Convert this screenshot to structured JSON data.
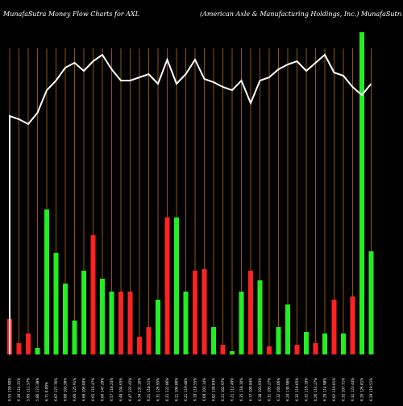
{
  "header": {
    "title_left": "MunafaSutra  Money Flow  Charts for AXL",
    "title_right": "(American  Axle   & Manufacturing Holdings,  Inc.) MunafaSutra.com"
  },
  "chart_data": {
    "type": "bar",
    "title": "MunafaSutra  Money Flow  Charts for AXL",
    "subtitle": "(American  Axle   & Manufacturing Holdings,  Inc.) MunafaSutra.com",
    "colors": {
      "background": "#000000",
      "grid": "#b86a10",
      "up": "#22ee22",
      "down": "#ff2222",
      "line": "#ffffff"
    },
    "categories": [
      "6.55 159.90%",
      "6.20 114.31%",
      "5.95 111.57%",
      "5.86 173.38%",
      "6.71 0.00%",
      "6.67 177.76%",
      "6.60 103.58%",
      "6.60 125.91%",
      "6.68 106.00%",
      "6.65 116.47%",
      "6.60 147.29%",
      "6.57 118.24%",
      "6.48 104.65%",
      "6.47 122.42%",
      "6.34 131.16%",
      "6.21 118.51%",
      "6.31 126.95%",
      "6.21 122.86%",
      "6.21 106.80%",
      "6.21 119.48%",
      "6.19 118.55%",
      "6.09 103.14%",
      "6.02 128.83%",
      "6.21 102.97%",
      "6.21 112.49%",
      "6.35 118.10%",
      "6.37 100.84%",
      "6.38 103.93%",
      "6.31 105.27%",
      "6.32 160.06%",
      "6.24 130.98%",
      "6.32 119.05%",
      "6.31 119.19%",
      "6.26 114.27%",
      "6.29 114.98%",
      "6.02 110.01%",
      "6.32 107.71%",
      "6.31 123.44%",
      "6.26 126.81%",
      "6.29 119.51%"
    ],
    "directions": [
      "red",
      "red",
      "red",
      "green",
      "green",
      "green",
      "green",
      "green",
      "green",
      "red",
      "green",
      "green",
      "red",
      "red",
      "red",
      "red",
      "green",
      "red",
      "green",
      "green",
      "red",
      "red",
      "green",
      "red",
      "green",
      "green",
      "red",
      "green",
      "red",
      "green",
      "green",
      "red",
      "green",
      "red",
      "green",
      "red",
      "green",
      "red",
      "green",
      "green"
    ],
    "values": [
      22,
      7,
      13,
      4,
      90,
      63,
      44,
      21,
      52,
      74,
      47,
      39,
      39,
      39,
      11,
      17,
      34,
      85,
      85,
      39,
      52,
      53,
      17,
      6,
      2,
      39,
      52,
      46,
      5,
      17,
      31,
      6,
      14,
      7,
      13,
      34,
      13,
      36,
      200,
      64
    ],
    "price_line": [
      148,
      146,
      143,
      150,
      164,
      170,
      178,
      181,
      176,
      182,
      186,
      177,
      170,
      170,
      172,
      174,
      168,
      183,
      168,
      174,
      183,
      171,
      169,
      166,
      164,
      170,
      156,
      170,
      172,
      177,
      180,
      182,
      176,
      181,
      186,
      175,
      173,
      166,
      161,
      168
    ],
    "value_axis_max": 100,
    "line_range": [
      0,
      220
    ],
    "grid": true,
    "legend": "none"
  }
}
